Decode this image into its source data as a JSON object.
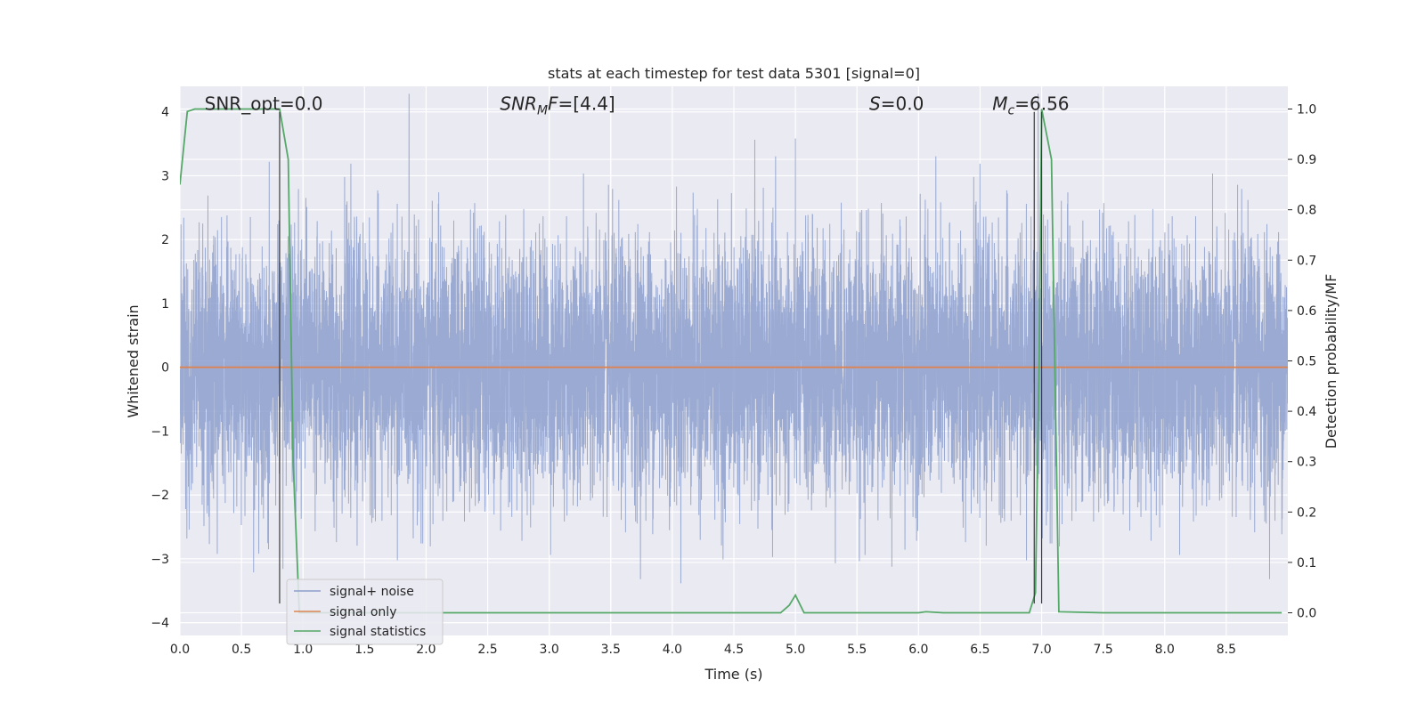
{
  "chart_data": {
    "type": "line",
    "title": "stats at each timestep for test data 5301 [signal=0]",
    "xlabel": "Time (s)",
    "ylabel": "Whitened strain",
    "ylabel_right": "Detection probability/MF",
    "xlim": [
      0,
      9.0
    ],
    "ylim": [
      -4.2,
      4.4
    ],
    "ylim_right": [
      -0.045,
      1.045
    ],
    "xticks": [
      0.0,
      0.5,
      1.0,
      1.5,
      2.0,
      2.5,
      3.0,
      3.5,
      4.0,
      4.5,
      5.0,
      5.5,
      6.0,
      6.5,
      7.0,
      7.5,
      8.0,
      8.5
    ],
    "xtick_labels": [
      "0.0",
      "0.5",
      "1.0",
      "1.5",
      "2.0",
      "2.5",
      "3.0",
      "3.5",
      "4.0",
      "4.5",
      "5.0",
      "5.5",
      "6.0",
      "6.5",
      "7.0",
      "7.5",
      "8.0",
      "8.5"
    ],
    "yticks": [
      -4,
      -3,
      -2,
      -1,
      0,
      1,
      2,
      3,
      4
    ],
    "ytick_labels": [
      "−4",
      "−3",
      "−2",
      "−1",
      "0",
      "1",
      "2",
      "3",
      "4"
    ],
    "yticks_right": [
      0.0,
      0.1,
      0.2,
      0.3,
      0.4,
      0.5,
      0.6,
      0.7,
      0.8,
      0.9,
      1.0
    ],
    "ytick_labels_right": [
      "0.0",
      "0.1",
      "0.2",
      "0.3",
      "0.4",
      "0.5",
      "0.6",
      "0.7",
      "0.8",
      "0.9",
      "1.0"
    ],
    "grid": true,
    "legend_placement": "lower-left",
    "series": [
      {
        "name": "signal+ noise",
        "color": "#8c9fcc",
        "kind": "noise",
        "sample_rate": 1024,
        "duration": 9.0,
        "noise_std": 1.0
      },
      {
        "name": "signal only",
        "color": "#dd8452",
        "x": [
          0,
          9.0
        ],
        "y": [
          0,
          0
        ]
      },
      {
        "name": "signal statistics",
        "color": "#55a868",
        "axis": "right",
        "x": [
          0.0,
          0.06,
          0.12,
          0.2,
          0.4,
          0.6,
          0.8,
          0.81,
          0.88,
          0.92,
          0.97,
          1.0,
          1.5,
          2.0,
          2.5,
          3.0,
          3.5,
          4.0,
          4.5,
          4.88,
          4.95,
          5.0,
          5.07,
          5.5,
          6.0,
          6.06,
          6.2,
          6.5,
          6.9,
          6.95,
          6.98,
          7.0,
          7.08,
          7.14,
          7.5,
          8.0,
          8.5,
          8.95
        ],
        "y": [
          0.85,
          0.995,
          1.0,
          1.0,
          1.0,
          1.0,
          1.0,
          1.0,
          0.9,
          0.3,
          0.0,
          0.0,
          0.0,
          0.0,
          0.0,
          0.0,
          0.0,
          0.0,
          0.0,
          0.0,
          0.015,
          0.035,
          0.0,
          0.0,
          0.0,
          0.002,
          0.0,
          0.0,
          0.0,
          0.04,
          0.5,
          1.0,
          0.9,
          0.002,
          0.0,
          0.0,
          0.0,
          0.0
        ]
      }
    ],
    "vlines": [
      {
        "x": 0.81,
        "y_range": [
          -3.7,
          4.0
        ],
        "color": "#3a3a3a"
      },
      {
        "x": 6.94,
        "y_range": [
          -3.7,
          4.0
        ],
        "color": "#3a3a3a"
      },
      {
        "x": 7.0,
        "y_range": [
          -3.7,
          4.0
        ],
        "color": "#3a3a3a"
      }
    ],
    "annotations": [
      {
        "x": 0.2,
        "y": 4.0,
        "text": "SNR_opt=0.0",
        "italic": false
      },
      {
        "x": 2.6,
        "y": 4.0,
        "main": "SNR",
        "sub": "M",
        "rest": "F=[4.4]",
        "italic": true
      },
      {
        "x": 5.6,
        "y": 4.0,
        "main": "S",
        "sub": "",
        "rest": "=0.0",
        "italic": true
      },
      {
        "x": 6.6,
        "y": 4.0,
        "main": "M",
        "sub": "c",
        "rest": "=6.56",
        "italic": true
      }
    ]
  }
}
